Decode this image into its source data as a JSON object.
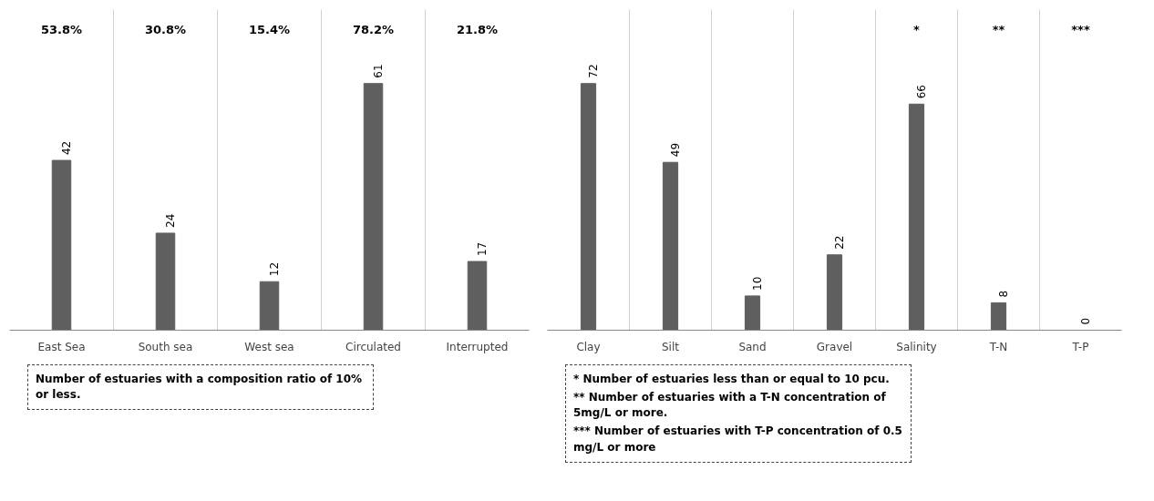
{
  "chart_data": [
    {
      "type": "bar",
      "categories": [
        "East Sea",
        "South sea",
        "West sea",
        "Circulated",
        "Interrupted"
      ],
      "values": [
        42,
        24,
        12,
        61,
        17
      ],
      "color": "#5f5f5f",
      "data_labels": true,
      "grid": "x",
      "annotations": [
        "53.8%",
        "30.8%",
        "15.4%",
        "78.2%",
        "21.8%",
        "Number of estuaries with a composition ratio of 10% or less."
      ]
    },
    {
      "type": "bar",
      "categories": [
        "Clay",
        "Silt",
        "Sand",
        "Gravel",
        "Salinity",
        "T-N",
        "T-P"
      ],
      "values": [
        72,
        49,
        10,
        22,
        66,
        8,
        0
      ],
      "color": "#5f5f5f",
      "data_labels": true,
      "grid": "x",
      "annotations": [
        "*",
        "**",
        "***",
        "*   Number of estuaries less than or equal to 10 pcu.",
        "**  Number of estuaries with a T-N concentration of 5mg/L or more.",
        "*** Number of estuaries with T-P concentration of 0.5 mg/L or more"
      ]
    }
  ]
}
